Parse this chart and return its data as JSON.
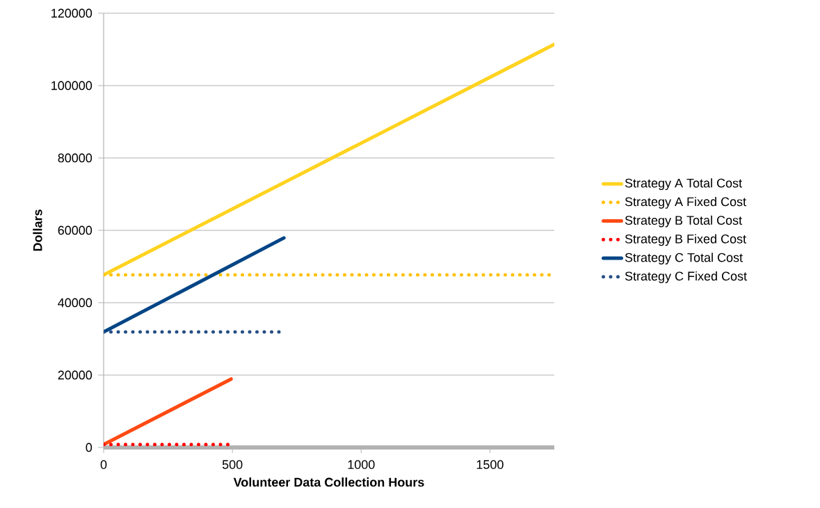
{
  "chart_data": {
    "type": "line",
    "xlabel": "Volunteer Data Collection Hours",
    "ylabel": "Dollars",
    "xlim": [
      0,
      1750
    ],
    "ylim": [
      0,
      120000
    ],
    "xticks": [
      0,
      500,
      1000,
      1500
    ],
    "yticks": [
      0,
      20000,
      40000,
      60000,
      80000,
      100000,
      120000
    ],
    "grid": "y",
    "legend": "right",
    "series": [
      {
        "name": "Strategy A Total Cost",
        "color": "#ffd320",
        "line_style": "solid",
        "x": [
          0,
          1750
        ],
        "values": [
          47700,
          111400
        ]
      },
      {
        "name": "Strategy A Fixed Cost",
        "color": "#ffc000",
        "line_style": "dotted",
        "x": [
          0,
          1750
        ],
        "values": [
          47700,
          47700
        ]
      },
      {
        "name": "Strategy B Total Cost",
        "color": "#ff4a12",
        "line_style": "solid",
        "x": [
          0,
          495
        ],
        "values": [
          800,
          18900
        ]
      },
      {
        "name": "Strategy B Fixed Cost",
        "color": "#ff0000",
        "line_style": "dotted",
        "x": [
          0,
          495
        ],
        "values": [
          800,
          800
        ]
      },
      {
        "name": "Strategy C Total Cost",
        "color": "#004586",
        "line_style": "solid",
        "x": [
          0,
          700
        ],
        "values": [
          31900,
          57900
        ]
      },
      {
        "name": "Strategy C Fixed Cost",
        "color": "#264f85",
        "line_style": "dotted",
        "x": [
          0,
          690
        ],
        "values": [
          31900,
          31900
        ]
      }
    ]
  }
}
